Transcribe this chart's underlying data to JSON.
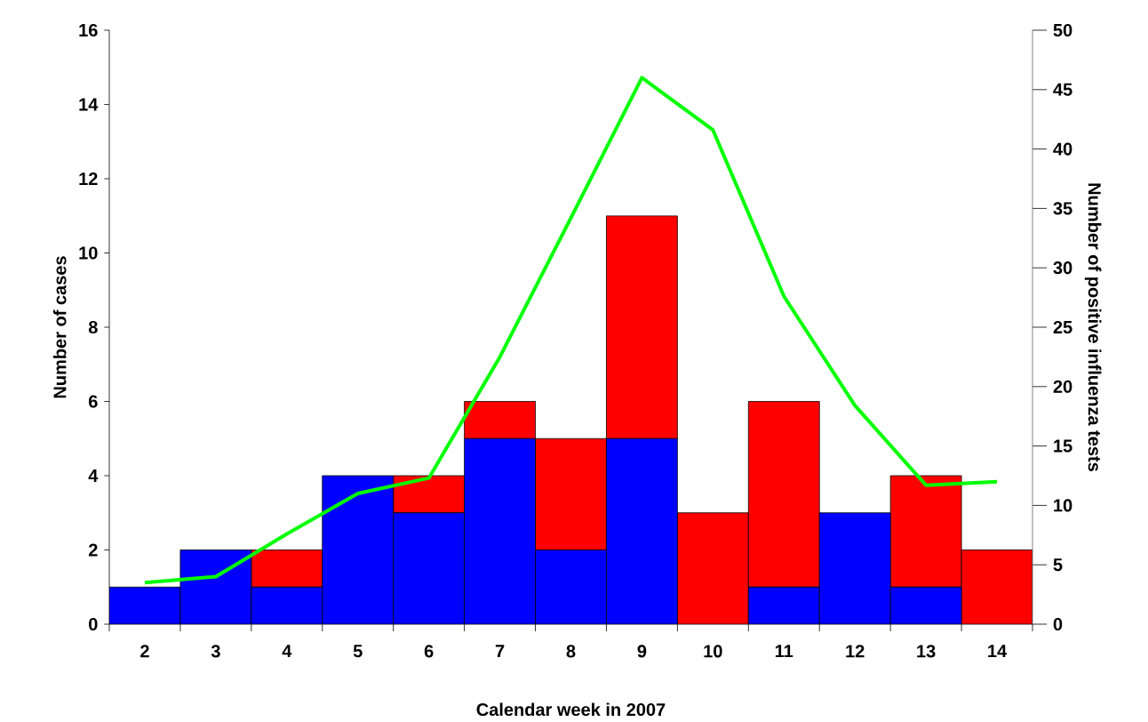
{
  "chart_data": {
    "type": "bar",
    "stacked": true,
    "xlabel": "Calendar week in 2007",
    "ylabel": "Number of cases",
    "y2label": "Number of positive influenza tests",
    "categories": [
      "2",
      "3",
      "4",
      "5",
      "6",
      "7",
      "8",
      "9",
      "10",
      "11",
      "12",
      "13",
      "14"
    ],
    "series": [
      {
        "color": "#0000ff",
        "values": [
          1,
          2,
          1,
          4,
          3,
          5,
          2,
          5,
          0,
          1,
          3,
          1,
          0
        ]
      },
      {
        "color": "#ff0000",
        "values": [
          0,
          0,
          1,
          0,
          1,
          1,
          3,
          6,
          3,
          5,
          0,
          3,
          2
        ]
      },
      {
        "type": "line",
        "axis": "y2",
        "color": "#00ff00",
        "values": [
          3.5,
          4.0,
          7.6,
          11.0,
          12.3,
          22.5,
          34.2,
          46.0,
          41.6,
          27.6,
          18.4,
          11.7,
          12.0
        ]
      }
    ],
    "ylim": [
      0,
      16
    ],
    "yticks": [
      0,
      2,
      4,
      6,
      8,
      10,
      12,
      14,
      16
    ],
    "y2lim": [
      0,
      50
    ],
    "y2ticks": [
      0,
      5,
      10,
      15,
      20,
      25,
      30,
      35,
      40,
      45,
      50
    ]
  }
}
